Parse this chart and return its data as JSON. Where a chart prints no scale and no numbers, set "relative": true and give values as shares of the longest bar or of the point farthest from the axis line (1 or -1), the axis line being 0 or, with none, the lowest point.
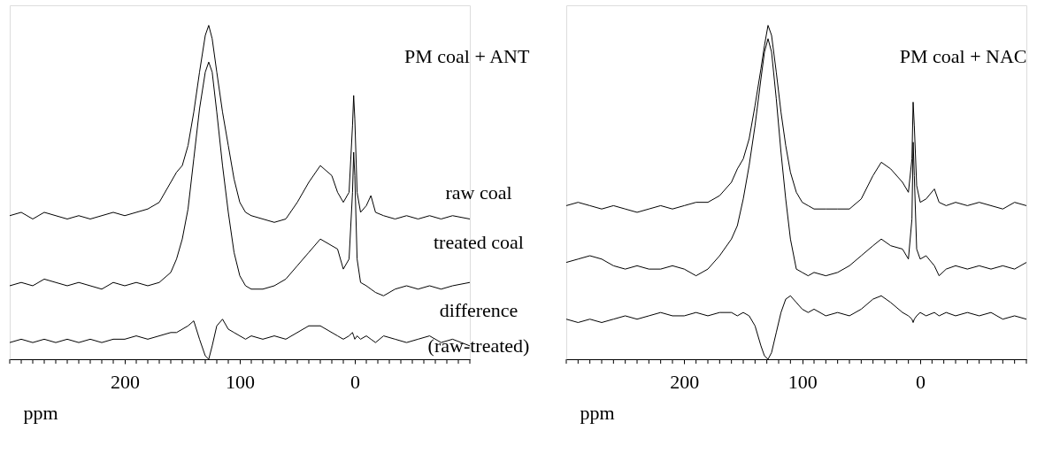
{
  "chart_data": [
    {
      "type": "line",
      "relative": true,
      "title": "PM coal + ANT",
      "xlabel": "ppm",
      "tick_labels": "x",
      "grid": false,
      "line_style": "solid",
      "marker": "none",
      "xlim": [
        300,
        -100
      ],
      "xticks": [
        {
          "value": 300,
          "label": null
        },
        {
          "value": 290,
          "label": null
        },
        {
          "value": 280,
          "label": null
        },
        {
          "value": 270,
          "label": null
        },
        {
          "value": 260,
          "label": null
        },
        {
          "value": 250,
          "label": null
        },
        {
          "value": 240,
          "label": null
        },
        {
          "value": 230,
          "label": null
        },
        {
          "value": 220,
          "label": null
        },
        {
          "value": 210,
          "label": null
        },
        200,
        {
          "value": 190,
          "label": null
        },
        {
          "value": 180,
          "label": null
        },
        {
          "value": 170,
          "label": null
        },
        {
          "value": 160,
          "label": null
        },
        {
          "value": 150,
          "label": null
        },
        {
          "value": 140,
          "label": null
        },
        {
          "value": 130,
          "label": null
        },
        {
          "value": 120,
          "label": null
        },
        {
          "value": 110,
          "label": null
        },
        100,
        {
          "value": 90,
          "label": null
        },
        {
          "value": 80,
          "label": null
        },
        {
          "value": 70,
          "label": null
        },
        {
          "value": 60,
          "label": null
        },
        {
          "value": 50,
          "label": null
        },
        {
          "value": 40,
          "label": null
        },
        {
          "value": 30,
          "label": null
        },
        {
          "value": 20,
          "label": null
        },
        {
          "value": 10,
          "label": null
        },
        0,
        {
          "value": -10,
          "label": null
        },
        {
          "value": -20,
          "label": null
        },
        {
          "value": -30,
          "label": null
        },
        {
          "value": -40,
          "label": null
        },
        {
          "value": -50,
          "label": null
        },
        {
          "value": -60,
          "label": null
        },
        {
          "value": -70,
          "label": null
        },
        {
          "value": -80,
          "label": null
        },
        {
          "value": -90,
          "label": null
        },
        {
          "value": -100,
          "label": null
        }
      ],
      "x": [
        300,
        290,
        280,
        270,
        260,
        250,
        240,
        230,
        220,
        210,
        200,
        190,
        180,
        170,
        160,
        155,
        150,
        145,
        140,
        135,
        130,
        127,
        124,
        120,
        115,
        110,
        105,
        100,
        95,
        90,
        80,
        70,
        60,
        50,
        40,
        30,
        20,
        15,
        10,
        5,
        2,
        1,
        0,
        -2,
        -5,
        -10,
        -14,
        -18,
        -25,
        -35,
        -45,
        -55,
        -65,
        -75,
        -85,
        -100
      ],
      "series": [
        {
          "color": "#000000",
          "values": [
            0.43,
            0.44,
            0.42,
            0.44,
            0.43,
            0.42,
            0.43,
            0.42,
            0.43,
            0.44,
            0.43,
            0.44,
            0.45,
            0.47,
            0.53,
            0.56,
            0.58,
            0.64,
            0.74,
            0.86,
            0.97,
            1.0,
            0.96,
            0.86,
            0.74,
            0.64,
            0.54,
            0.47,
            0.44,
            0.43,
            0.42,
            0.41,
            0.42,
            0.47,
            0.53,
            0.58,
            0.55,
            0.5,
            0.47,
            0.5,
            0.7,
            0.79,
            0.72,
            0.5,
            0.44,
            0.46,
            0.49,
            0.44,
            0.43,
            0.42,
            0.43,
            0.42,
            0.43,
            0.42,
            0.43,
            0.42
          ]
        },
        {
          "color": "#000000",
          "values": [
            0.22,
            0.23,
            0.22,
            0.24,
            0.23,
            0.22,
            0.23,
            0.22,
            0.21,
            0.23,
            0.22,
            0.23,
            0.22,
            0.23,
            0.26,
            0.3,
            0.36,
            0.45,
            0.6,
            0.75,
            0.86,
            0.89,
            0.86,
            0.74,
            0.58,
            0.44,
            0.32,
            0.25,
            0.22,
            0.21,
            0.21,
            0.22,
            0.24,
            0.28,
            0.32,
            0.36,
            0.34,
            0.33,
            0.27,
            0.3,
            0.5,
            0.62,
            0.55,
            0.3,
            0.23,
            0.22,
            0.21,
            0.2,
            0.19,
            0.21,
            0.22,
            0.21,
            0.22,
            0.21,
            0.22,
            0.23
          ]
        },
        {
          "color": "#000000",
          "values": [
            0.05,
            0.06,
            0.05,
            0.06,
            0.05,
            0.06,
            0.05,
            0.06,
            0.05,
            0.06,
            0.06,
            0.07,
            0.06,
            0.07,
            0.08,
            0.08,
            0.09,
            0.1,
            0.115,
            0.06,
            0.01,
            0.0,
            0.04,
            0.1,
            0.12,
            0.09,
            0.08,
            0.07,
            0.06,
            0.07,
            0.06,
            0.07,
            0.06,
            0.08,
            0.1,
            0.1,
            0.08,
            0.07,
            0.06,
            0.07,
            0.08,
            0.07,
            0.06,
            0.07,
            0.06,
            0.07,
            0.06,
            0.05,
            0.07,
            0.06,
            0.05,
            0.06,
            0.07,
            0.05,
            0.06,
            0.04
          ]
        }
      ],
      "annotations": [
        "raw coal",
        "treated coal",
        "difference",
        "(raw-treated)"
      ]
    },
    {
      "type": "line",
      "relative": true,
      "title": "PM coal + NAC",
      "xlabel": "ppm",
      "tick_labels": "x",
      "grid": false,
      "line_style": "solid",
      "marker": "none",
      "xlim": [
        300,
        -90
      ],
      "xticks": [
        {
          "value": 300,
          "label": null
        },
        {
          "value": 290,
          "label": null
        },
        {
          "value": 280,
          "label": null
        },
        {
          "value": 270,
          "label": null
        },
        {
          "value": 260,
          "label": null
        },
        {
          "value": 250,
          "label": null
        },
        {
          "value": 240,
          "label": null
        },
        {
          "value": 230,
          "label": null
        },
        {
          "value": 220,
          "label": null
        },
        {
          "value": 210,
          "label": null
        },
        200,
        {
          "value": 190,
          "label": null
        },
        {
          "value": 180,
          "label": null
        },
        {
          "value": 170,
          "label": null
        },
        {
          "value": 160,
          "label": null
        },
        {
          "value": 150,
          "label": null
        },
        {
          "value": 140,
          "label": null
        },
        {
          "value": 130,
          "label": null
        },
        {
          "value": 120,
          "label": null
        },
        {
          "value": 110,
          "label": null
        },
        100,
        {
          "value": 90,
          "label": null
        },
        {
          "value": 80,
          "label": null
        },
        {
          "value": 70,
          "label": null
        },
        {
          "value": 60,
          "label": null
        },
        {
          "value": 50,
          "label": null
        },
        {
          "value": 40,
          "label": null
        },
        {
          "value": 30,
          "label": null
        },
        {
          "value": 20,
          "label": null
        },
        {
          "value": 10,
          "label": null
        },
        0,
        {
          "value": -10,
          "label": null
        },
        {
          "value": -20,
          "label": null
        },
        {
          "value": -30,
          "label": null
        },
        {
          "value": -40,
          "label": null
        },
        {
          "value": -50,
          "label": null
        },
        {
          "value": -60,
          "label": null
        },
        {
          "value": -70,
          "label": null
        },
        {
          "value": -80,
          "label": null
        },
        {
          "value": -90,
          "label": null
        }
      ],
      "x": [
        300,
        290,
        280,
        270,
        260,
        250,
        240,
        230,
        220,
        210,
        200,
        190,
        180,
        170,
        160,
        155,
        150,
        145,
        140,
        135,
        132,
        129,
        126,
        122,
        118,
        114,
        110,
        105,
        100,
        95,
        90,
        80,
        70,
        60,
        50,
        40,
        33,
        25,
        15,
        10,
        7,
        6,
        5,
        3,
        0,
        -5,
        -12,
        -16,
        -22,
        -30,
        -40,
        -50,
        -60,
        -70,
        -80,
        -90
      ],
      "series": [
        {
          "color": "#000000",
          "values": [
            0.46,
            0.47,
            0.46,
            0.45,
            0.46,
            0.45,
            0.44,
            0.45,
            0.46,
            0.45,
            0.46,
            0.47,
            0.47,
            0.49,
            0.53,
            0.57,
            0.6,
            0.66,
            0.76,
            0.87,
            0.94,
            1.0,
            0.97,
            0.86,
            0.74,
            0.64,
            0.56,
            0.5,
            0.47,
            0.46,
            0.45,
            0.45,
            0.45,
            0.45,
            0.48,
            0.55,
            0.59,
            0.57,
            0.53,
            0.5,
            0.6,
            0.77,
            0.7,
            0.52,
            0.47,
            0.48,
            0.51,
            0.47,
            0.46,
            0.47,
            0.46,
            0.47,
            0.46,
            0.45,
            0.47,
            0.46
          ]
        },
        {
          "color": "#000000",
          "values": [
            0.29,
            0.3,
            0.31,
            0.3,
            0.28,
            0.27,
            0.28,
            0.27,
            0.27,
            0.28,
            0.27,
            0.25,
            0.27,
            0.31,
            0.36,
            0.4,
            0.48,
            0.58,
            0.7,
            0.84,
            0.92,
            0.96,
            0.92,
            0.78,
            0.62,
            0.48,
            0.36,
            0.27,
            0.26,
            0.25,
            0.26,
            0.25,
            0.26,
            0.28,
            0.31,
            0.34,
            0.36,
            0.34,
            0.33,
            0.3,
            0.42,
            0.65,
            0.55,
            0.33,
            0.3,
            0.31,
            0.28,
            0.25,
            0.27,
            0.28,
            0.27,
            0.28,
            0.27,
            0.28,
            0.27,
            0.29
          ]
        },
        {
          "color": "#000000",
          "values": [
            0.12,
            0.11,
            0.12,
            0.11,
            0.12,
            0.13,
            0.12,
            0.13,
            0.14,
            0.13,
            0.13,
            0.14,
            0.13,
            0.14,
            0.14,
            0.13,
            0.14,
            0.13,
            0.1,
            0.04,
            0.01,
            0.0,
            0.02,
            0.08,
            0.14,
            0.18,
            0.19,
            0.17,
            0.15,
            0.14,
            0.15,
            0.13,
            0.14,
            0.13,
            0.15,
            0.18,
            0.19,
            0.17,
            0.14,
            0.13,
            0.12,
            0.11,
            0.12,
            0.13,
            0.14,
            0.13,
            0.14,
            0.13,
            0.14,
            0.13,
            0.14,
            0.13,
            0.14,
            0.12,
            0.13,
            0.12
          ]
        }
      ]
    }
  ]
}
